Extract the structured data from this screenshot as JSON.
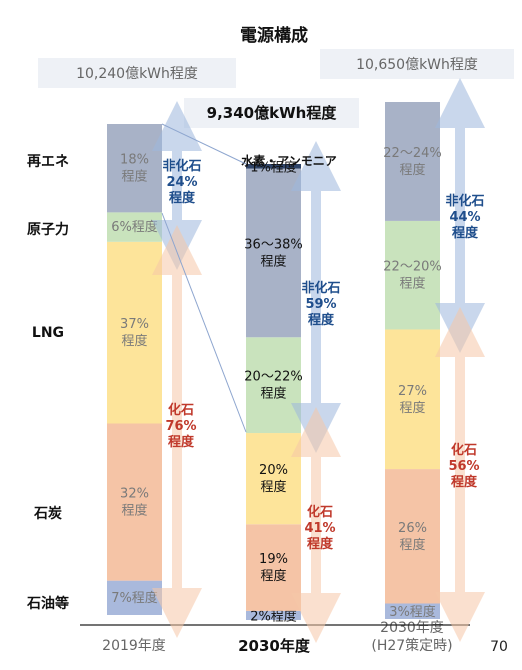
{
  "page_number": "70",
  "chart_data": {
    "type": "bar",
    "title": "電源構成",
    "categories": [
      "2019年度",
      "2030年度",
      "2030年度\n(H27策定時)"
    ],
    "totals": [
      "10,240億kWh程度",
      "9,340億kWh程度",
      "10,650億kWh程度"
    ],
    "rows": [
      "再エネ",
      "原子力",
      "LNG",
      "石炭",
      "石油等"
    ],
    "series": [
      {
        "name": "石油等",
        "values": [
          7,
          2,
          3
        ],
        "labels": [
          "7%程度",
          "2%程度",
          "3%程度"
        ]
      },
      {
        "name": "石炭",
        "values": [
          32,
          19,
          26
        ],
        "labels": [
          "32%\n程度",
          "19%\n程度",
          "26%\n程度"
        ]
      },
      {
        "name": "LNG",
        "values": [
          37,
          20,
          27
        ],
        "labels": [
          "37%\n程度",
          "20%\n程度",
          "27%\n程度"
        ]
      },
      {
        "name": "原子力",
        "values": [
          6,
          21,
          21
        ],
        "labels": [
          "6%程度",
          "20～22%\n程度",
          "22～20%\n程度"
        ]
      },
      {
        "name": "再エネ",
        "values": [
          18,
          37,
          23
        ],
        "labels": [
          "18%\n程度",
          "36～38%\n程度",
          "22～24%\n程度"
        ]
      },
      {
        "name": "水素・アンモニア",
        "values": [
          0,
          1,
          0
        ],
        "labels": [
          "",
          "1%程度",
          ""
        ]
      }
    ],
    "annotation": "水素・アンモニア",
    "groups": [
      {
        "name": "非化石",
        "values": [
          "24%\n程度",
          "59%\n程度",
          "44%\n程度"
        ]
      },
      {
        "name": "化石",
        "values": [
          "76%\n程度",
          "41%\n程度",
          "56%\n程度"
        ]
      }
    ],
    "colors": {
      "oil": "#a9b9dc",
      "coal": "#f5c4a6",
      "lng": "#fde49a",
      "nuclear": "#c9e3bd",
      "renew": "#a8b2c7",
      "nonfossil": "#1f4e8c",
      "fossil": "#c0392b"
    }
  }
}
